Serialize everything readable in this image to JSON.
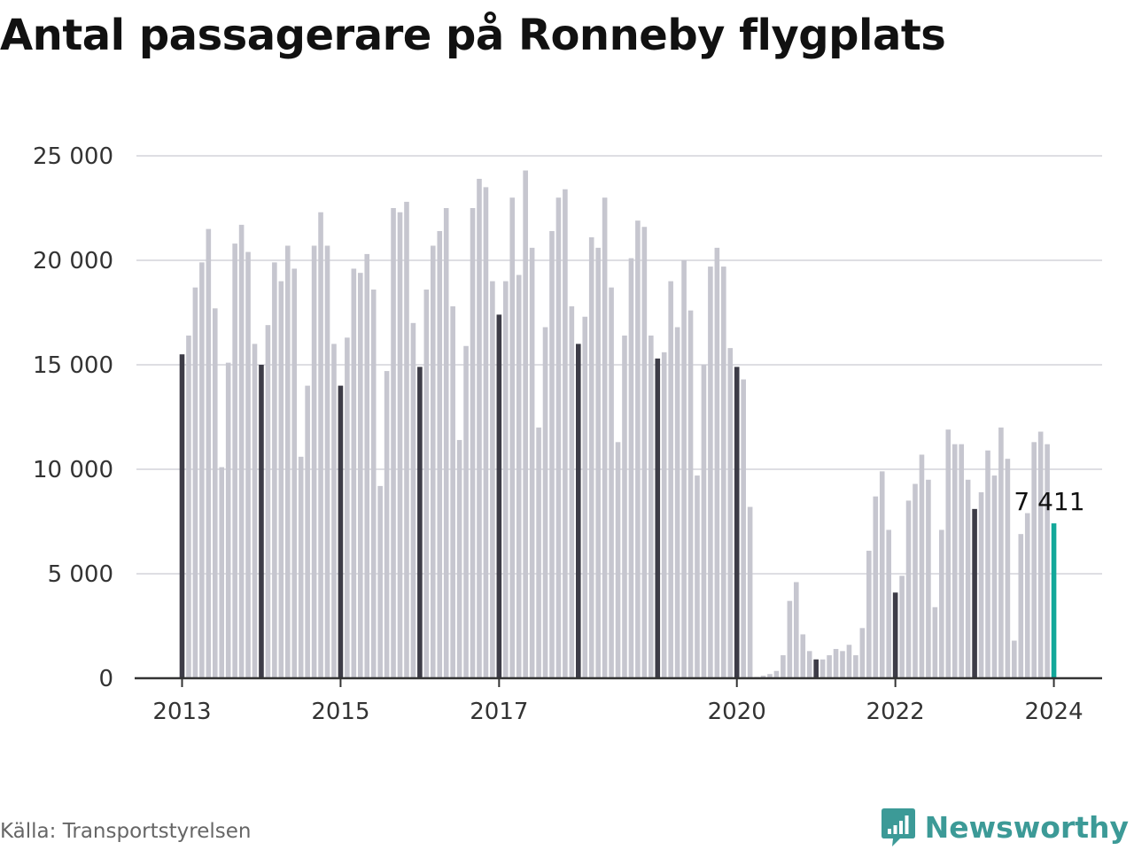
{
  "page": {
    "title": "Antal passagerare på Ronneby flygplats",
    "source": "Källa: Transportstyrelsen",
    "brand": "Newsworthy"
  },
  "colors": {
    "bar": "#c6c6cf",
    "january_bar": "#3d3c47",
    "latest_bar": "#13a89a",
    "grid": "#dedee3",
    "axis": "#333333",
    "brand": "#3c9a97"
  },
  "chart_data": {
    "type": "bar",
    "title": "Antal passagerare på Ronneby flygplats",
    "xlabel": "",
    "ylabel": "",
    "ylim": [
      0,
      25000
    ],
    "y_ticks": [
      0,
      5000,
      10000,
      15000,
      20000,
      25000
    ],
    "y_tick_labels": [
      "0",
      "5 000",
      "10 000",
      "15 000",
      "20 000",
      "25 000"
    ],
    "x_tick_labels": [
      {
        "label": "2013",
        "month": "2013-01"
      },
      {
        "label": "2015",
        "month": "2015-01"
      },
      {
        "label": "2017",
        "month": "2017-01"
      },
      {
        "label": "2020",
        "month": "2020-01"
      },
      {
        "label": "2022",
        "month": "2022-01"
      },
      {
        "label": "2024",
        "month": "2024-01"
      }
    ],
    "grid": true,
    "legend": "none",
    "highlight": "january bars dark, latest month teal",
    "annotation": {
      "month": "2024-01",
      "value": 7411,
      "text": "7 411"
    },
    "months": [
      "2013-01",
      "2013-02",
      "2013-03",
      "2013-04",
      "2013-05",
      "2013-06",
      "2013-07",
      "2013-08",
      "2013-09",
      "2013-10",
      "2013-11",
      "2013-12",
      "2014-01",
      "2014-02",
      "2014-03",
      "2014-04",
      "2014-05",
      "2014-06",
      "2014-07",
      "2014-08",
      "2014-09",
      "2014-10",
      "2014-11",
      "2014-12",
      "2015-01",
      "2015-02",
      "2015-03",
      "2015-04",
      "2015-05",
      "2015-06",
      "2015-07",
      "2015-08",
      "2015-09",
      "2015-10",
      "2015-11",
      "2015-12",
      "2016-01",
      "2016-02",
      "2016-03",
      "2016-04",
      "2016-05",
      "2016-06",
      "2016-07",
      "2016-08",
      "2016-09",
      "2016-10",
      "2016-11",
      "2016-12",
      "2017-01",
      "2017-02",
      "2017-03",
      "2017-04",
      "2017-05",
      "2017-06",
      "2017-07",
      "2017-08",
      "2017-09",
      "2017-10",
      "2017-11",
      "2017-12",
      "2018-01",
      "2018-02",
      "2018-03",
      "2018-04",
      "2018-05",
      "2018-06",
      "2018-07",
      "2018-08",
      "2018-09",
      "2018-10",
      "2018-11",
      "2018-12",
      "2019-01",
      "2019-02",
      "2019-03",
      "2019-04",
      "2019-05",
      "2019-06",
      "2019-07",
      "2019-08",
      "2019-09",
      "2019-10",
      "2019-11",
      "2019-12",
      "2020-01",
      "2020-02",
      "2020-03",
      "2020-04",
      "2020-05",
      "2020-06",
      "2020-07",
      "2020-08",
      "2020-09",
      "2020-10",
      "2020-11",
      "2020-12",
      "2021-01",
      "2021-02",
      "2021-03",
      "2021-04",
      "2021-05",
      "2021-06",
      "2021-07",
      "2021-08",
      "2021-09",
      "2021-10",
      "2021-11",
      "2021-12",
      "2022-01",
      "2022-02",
      "2022-03",
      "2022-04",
      "2022-05",
      "2022-06",
      "2022-07",
      "2022-08",
      "2022-09",
      "2022-10",
      "2022-11",
      "2022-12",
      "2023-01",
      "2023-02",
      "2023-03",
      "2023-04",
      "2023-05",
      "2023-06",
      "2023-07",
      "2023-08",
      "2023-09",
      "2023-10",
      "2023-11",
      "2023-12",
      "2024-01"
    ],
    "values": [
      15500,
      16400,
      18700,
      19900,
      21500,
      17700,
      10100,
      15100,
      20800,
      21700,
      20400,
      16000,
      15000,
      16900,
      19900,
      19000,
      20700,
      19600,
      10600,
      14000,
      20700,
      22300,
      20700,
      16000,
      14000,
      16300,
      19600,
      19400,
      20300,
      18600,
      9200,
      14700,
      22500,
      22300,
      22800,
      17000,
      14900,
      18600,
      20700,
      21400,
      22500,
      17800,
      11400,
      15900,
      22500,
      23900,
      23500,
      19000,
      17400,
      19000,
      23000,
      19300,
      24300,
      20600,
      12000,
      16800,
      21400,
      23000,
      23400,
      17800,
      16000,
      17300,
      21100,
      20600,
      23000,
      18700,
      11300,
      16400,
      20100,
      21900,
      21600,
      16400,
      15300,
      15600,
      19000,
      16800,
      20000,
      17600,
      9700,
      15000,
      19700,
      20600,
      19700,
      15800,
      14900,
      14300,
      8200,
      60,
      120,
      200,
      350,
      1100,
      3700,
      4600,
      2100,
      1300,
      900,
      900,
      1100,
      1400,
      1300,
      1600,
      1100,
      2400,
      6100,
      8700,
      9900,
      7100,
      4100,
      4900,
      8500,
      9300,
      10700,
      9500,
      3400,
      7100,
      11900,
      11200,
      11200,
      9500,
      8100,
      8900,
      10900,
      9700,
      12000,
      10500,
      1800,
      6900,
      7900,
      11300,
      11800,
      11200,
      7411
    ]
  }
}
